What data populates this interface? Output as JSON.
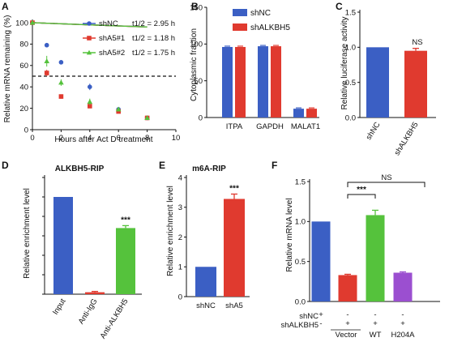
{
  "panels": [
    {
      "letter": "A"
    },
    {
      "letter": "B"
    },
    {
      "letter": "C"
    },
    {
      "letter": "D"
    },
    {
      "letter": "E"
    },
    {
      "letter": "F"
    }
  ],
  "chart_data": [
    {
      "panel": "A",
      "type": "line",
      "xlabel": "Hours after Act D treatment",
      "ylabel": "Relative mRNA remaining (%)",
      "xlim": [
        0,
        10
      ],
      "ylim": [
        0,
        100
      ],
      "xticks": [
        "0",
        "2",
        "4",
        "6",
        "8",
        "10"
      ],
      "yticks": [
        "0",
        "20",
        "40",
        "60",
        "80",
        "100"
      ],
      "reference_line": 50,
      "legend_position": "top-right",
      "series": [
        {
          "name": "shNC",
          "half_life": "t1/2 = 2.95 h",
          "color": "#3b5fc4",
          "marker": "circle",
          "x": [
            0,
            1,
            2,
            4,
            6,
            8
          ],
          "y": [
            100,
            79,
            63,
            40,
            19,
            11
          ]
        },
        {
          "name": "shA5#1",
          "half_life": "t1/2 = 1.18 h",
          "color": "#e03a2f",
          "marker": "square",
          "x": [
            0,
            1,
            2,
            4,
            6,
            8
          ],
          "y": [
            100,
            53,
            31,
            22,
            17,
            11
          ]
        },
        {
          "name": "shA5#2",
          "half_life": "t1/2 = 1.75 h",
          "color": "#55c23c",
          "marker": "triangle",
          "x": [
            0,
            1,
            2,
            4,
            6,
            8
          ],
          "y": [
            100,
            64,
            44,
            26,
            19,
            11
          ]
        }
      ]
    },
    {
      "panel": "B",
      "type": "bar",
      "ylabel": "Cytoplasmic fraction",
      "ylim": [
        0,
        150
      ],
      "yticks": [
        "0",
        "50",
        "100",
        "150"
      ],
      "categories": [
        "ITPA",
        "GAPDH",
        "MALAT1"
      ],
      "legend_position": "top",
      "series": [
        {
          "name": "shNC",
          "color": "#3b5fc4",
          "values": [
            96,
            97,
            12
          ]
        },
        {
          "name": "shALKBH5",
          "color": "#e03a2f",
          "values": [
            96,
            97,
            12
          ]
        }
      ]
    },
    {
      "panel": "C",
      "type": "bar",
      "ylabel": "Relative luciferase activity",
      "ylim": [
        0,
        1.5
      ],
      "yticks": [
        "0.0",
        "0.5",
        "1.0",
        "1.5"
      ],
      "categories": [
        "shNC",
        "shALKBH5"
      ],
      "values": [
        1.0,
        0.95
      ],
      "colors": [
        "#3b5fc4",
        "#e03a2f"
      ],
      "annotation": "NS"
    },
    {
      "panel": "D",
      "type": "bar",
      "title": "ALKBH5-RIP",
      "ylabel": "Relative enrichment level",
      "ylim": [
        0,
        1.2
      ],
      "categories": [
        "Input",
        "Anti-IgG",
        "Anti-ALKBH5"
      ],
      "values": [
        1.0,
        0.02,
        0.68
      ],
      "colors": [
        "#3b5fc4",
        "#e03a2f",
        "#55c23c"
      ],
      "significance": [
        "",
        "",
        "***"
      ]
    },
    {
      "panel": "E",
      "type": "bar",
      "title": "m6A-RIP",
      "ylabel": "Relative enrichment level",
      "ylim": [
        0,
        4
      ],
      "yticks": [
        "0",
        "1",
        "2",
        "3",
        "4"
      ],
      "categories": [
        "shNC",
        "shA5"
      ],
      "values": [
        1.0,
        3.28
      ],
      "colors": [
        "#3b5fc4",
        "#e03a2f"
      ],
      "significance": [
        "",
        "***"
      ]
    },
    {
      "panel": "F",
      "type": "bar",
      "ylabel": "Relative mRNA level",
      "ylim": [
        0,
        1.5
      ],
      "yticks": [
        "0.0",
        "0.5",
        "1.0",
        "1.5"
      ],
      "values": [
        1.0,
        0.33,
        1.08,
        0.36
      ],
      "colors": [
        "#3b5fc4",
        "#e03a2f",
        "#55c23c",
        "#9b4fd0"
      ],
      "row_labels": [
        "shNC",
        "shALKBH5"
      ],
      "treatment_rows": [
        [
          "+",
          "-",
          "-",
          "-"
        ],
        [
          "-",
          "+",
          "+",
          "+"
        ]
      ],
      "groups": [
        "Vector",
        "WT",
        "H204A"
      ],
      "comparisons": [
        "***",
        "NS"
      ]
    }
  ]
}
